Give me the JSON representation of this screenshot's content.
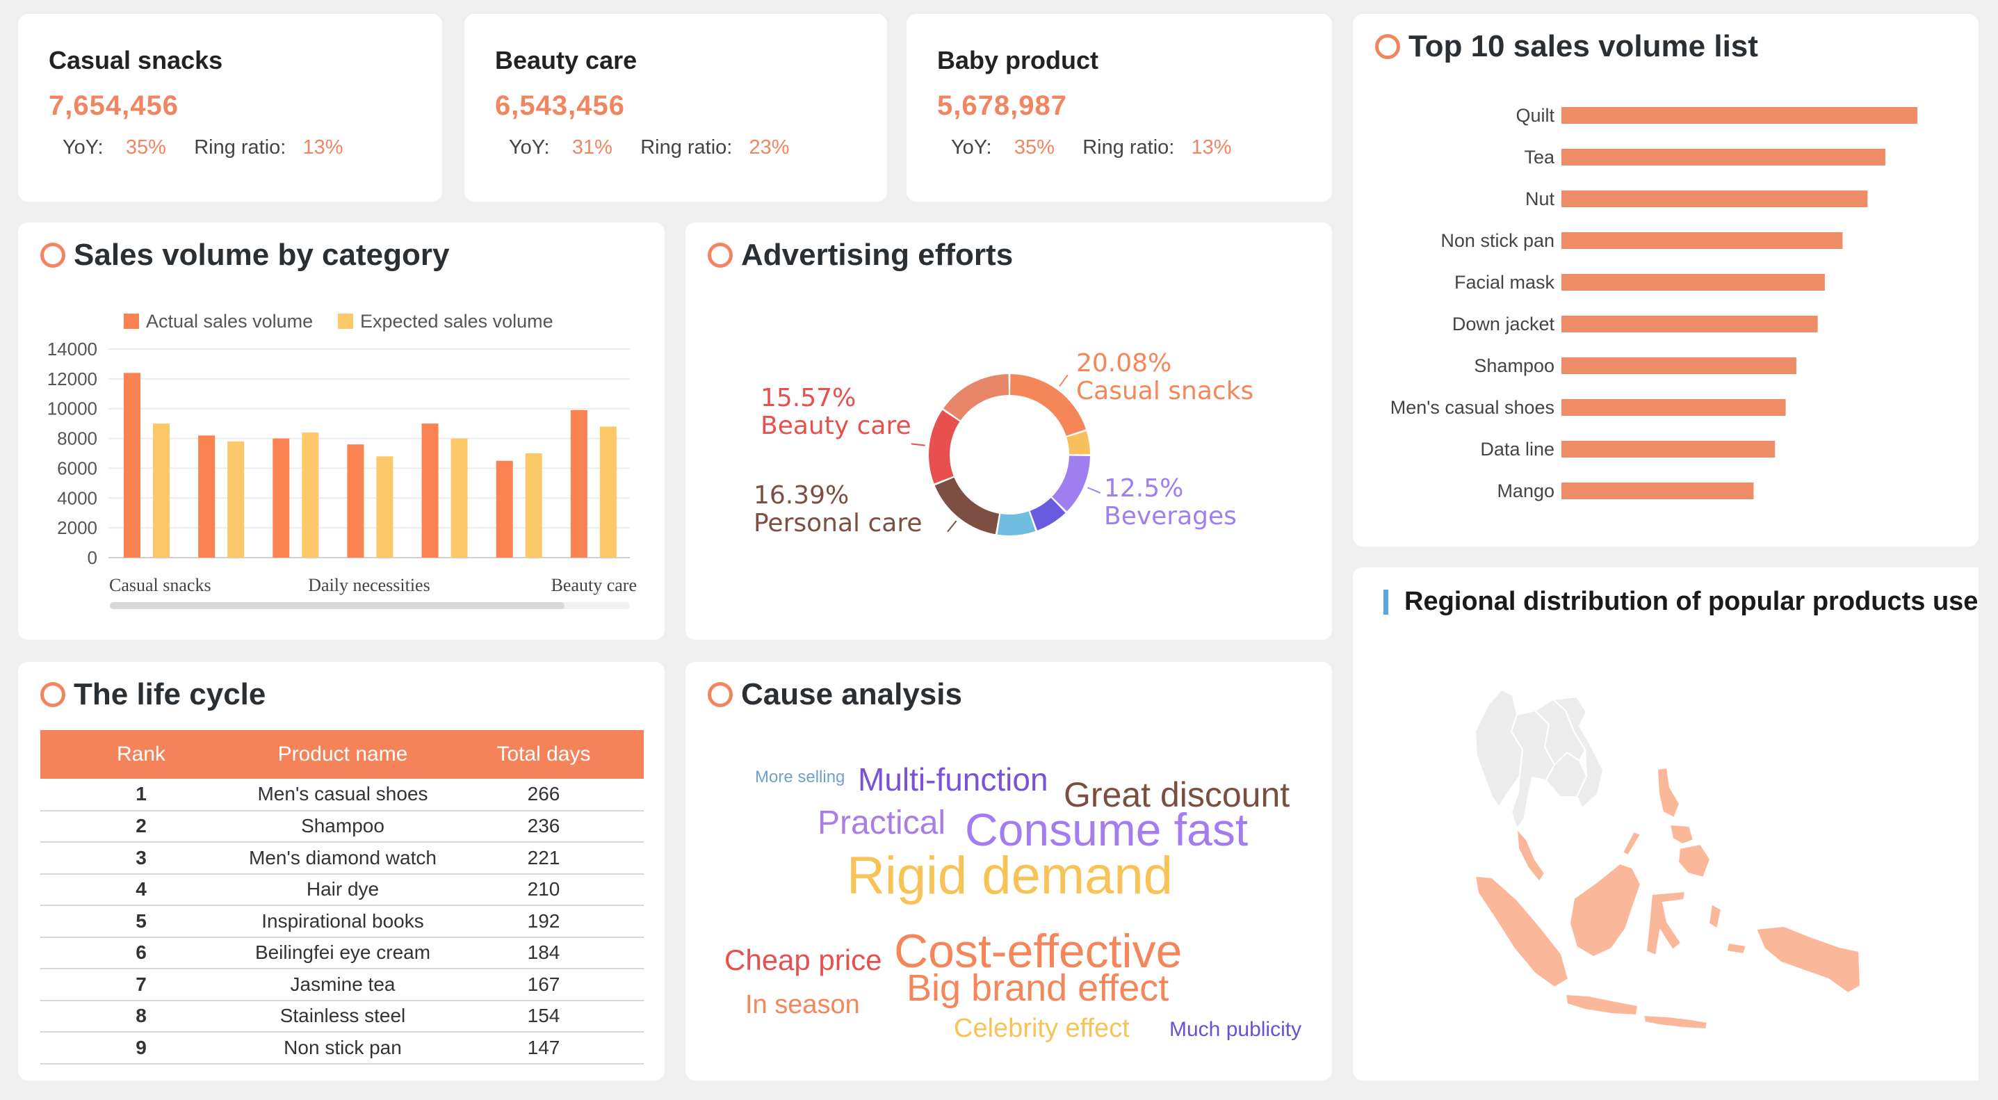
{
  "kpis": [
    {
      "name": "Casual snacks",
      "value": "7,654,456",
      "yoy_label": "YoY:",
      "yoy": "35%",
      "ring_label": "Ring ratio:",
      "ring": "13%"
    },
    {
      "name": "Beauty care",
      "value": "6,543,456",
      "yoy_label": "YoY:",
      "yoy": "31%",
      "ring_label": "Ring ratio:",
      "ring": "23%"
    },
    {
      "name": "Baby product",
      "value": "5,678,987",
      "yoy_label": "YoY:",
      "yoy": "35%",
      "ring_label": "Ring ratio:",
      "ring": "13%"
    }
  ],
  "sections": {
    "sales_category": "Sales volume by category",
    "advertising": "Advertising efforts",
    "life_cycle": "The life cycle",
    "cause": "Cause analysis",
    "top10": "Top 10 sales volume list",
    "map": "Regional distribution of popular products use"
  },
  "colors": {
    "accent": "#f28560",
    "bar_actual": "#fb8352",
    "bar_expected": "#fdc86a",
    "hbar": "#ef8c68",
    "map_land": "#ececec",
    "map_highlight": "#fbb79a"
  },
  "chart_data": [
    {
      "type": "bar",
      "title": "Sales volume by category",
      "categories": [
        "Casual snacks",
        "",
        "Daily necessities",
        "",
        "",
        "Beauty care",
        ""
      ],
      "xtick_labels": [
        "Casual snacks",
        "Daily necessities",
        "Beauty care"
      ],
      "series": [
        {
          "name": "Actual sales volume",
          "color": "#fb8352",
          "values": [
            12400,
            8200,
            8000,
            7600,
            9000,
            6500,
            9900
          ]
        },
        {
          "name": "Expected sales volume",
          "color": "#fdc86a",
          "values": [
            9000,
            7800,
            8400,
            6800,
            8000,
            7000,
            8800
          ]
        }
      ],
      "yticks": [
        "14000",
        "12000",
        "10000",
        "8000",
        "6000",
        "4000",
        "2000",
        "0"
      ],
      "ylim": [
        0,
        14000
      ],
      "grid": true,
      "legend": "top"
    },
    {
      "type": "pie",
      "title": "Advertising efforts",
      "donut": true,
      "slices": [
        {
          "name": "Casual snacks",
          "value": 20.08,
          "color": "#f4865a",
          "label": "20.08%"
        },
        {
          "name": "",
          "value": 5.0,
          "color": "#f7c05a"
        },
        {
          "name": "Beverages",
          "value": 12.5,
          "color": "#9f7ef0",
          "label": "12.5%"
        },
        {
          "name": "",
          "value": 7.0,
          "color": "#6a5ae0"
        },
        {
          "name": "",
          "value": 8.0,
          "color": "#6fbde0"
        },
        {
          "name": "Personal care",
          "value": 16.39,
          "color": "#7d4f42",
          "label": "16.39%"
        },
        {
          "name": "Beauty care",
          "value": 15.57,
          "color": "#e85050",
          "label": "15.57%"
        },
        {
          "name": "",
          "value": 15.46,
          "color": "#e8866a"
        }
      ]
    },
    {
      "type": "bar",
      "orientation": "horizontal",
      "title": "Top 10 sales volume list",
      "categories": [
        "Quilt",
        "Tea",
        "Nut",
        "Non stick pan",
        "Facial mask",
        "Down jacket",
        "Shampoo",
        "Men's casual shoes",
        "Data line",
        "Mango"
      ],
      "values": [
        100,
        91,
        86,
        79,
        74,
        72,
        66,
        63,
        60,
        54
      ]
    }
  ],
  "life_cycle": {
    "headers": [
      "Rank",
      "Product name",
      "Total days"
    ],
    "rows": [
      [
        "1",
        "Men's casual shoes",
        "266"
      ],
      [
        "2",
        "Shampoo",
        "236"
      ],
      [
        "3",
        "Men's diamond watch",
        "221"
      ],
      [
        "4",
        "Hair dye",
        "210"
      ],
      [
        "5",
        "Inspirational books",
        "192"
      ],
      [
        "6",
        "Beilingfei eye cream",
        "184"
      ],
      [
        "7",
        "Jasmine tea",
        "167"
      ],
      [
        "8",
        "Stainless steel",
        "154"
      ],
      [
        "9",
        "Non stick pan",
        "147"
      ]
    ]
  },
  "word_cloud": [
    {
      "text": "More selling",
      "color": "#6f9fd0"
    },
    {
      "text": "Multi-function",
      "color": "#7a52d8"
    },
    {
      "text": "Great discount",
      "color": "#7a4e40"
    },
    {
      "text": "Practical",
      "color": "#a77de8"
    },
    {
      "text": "Consume fast",
      "color": "#a27cf0"
    },
    {
      "text": "Rigid demand",
      "color": "#f8c356"
    },
    {
      "text": "Cheap price",
      "color": "#e85050"
    },
    {
      "text": "Cost-effective",
      "color": "#f4865a"
    },
    {
      "text": "Big brand effect",
      "color": "#f4865a"
    },
    {
      "text": "In season",
      "color": "#f4865a"
    },
    {
      "text": "Celebrity effect",
      "color": "#f8c356"
    },
    {
      "text": "Much publicity",
      "color": "#6a4fd8"
    }
  ]
}
